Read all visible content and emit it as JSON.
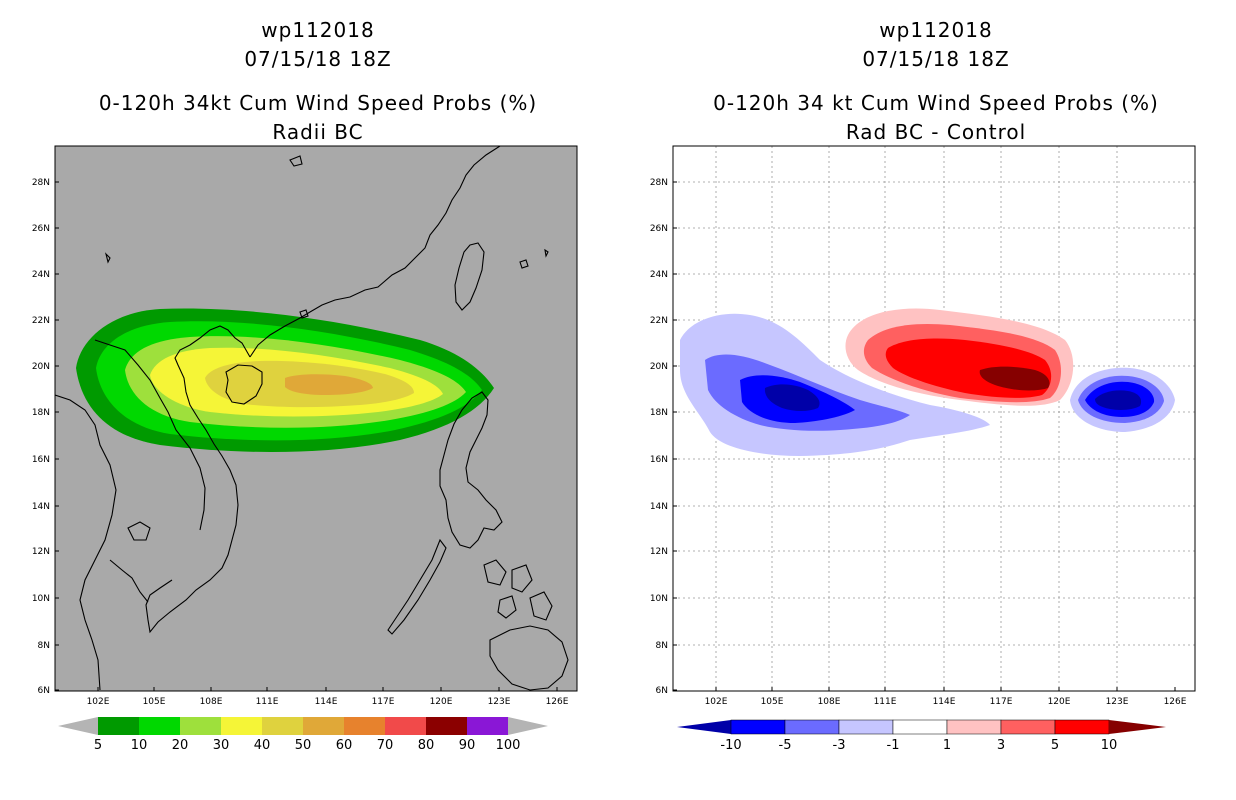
{
  "left_panel": {
    "title_line1": "wp112018",
    "title_line2": "07/15/18 18Z",
    "title_line3": "0-120h 34kt Cum Wind Speed Probs (%)",
    "title_line4": "Radii BC",
    "background_color": "#a9a9a9",
    "colorbar": {
      "labels": [
        "5",
        "10",
        "20",
        "30",
        "40",
        "50",
        "60",
        "70",
        "80",
        "90",
        "100"
      ],
      "colors": [
        "#009a00",
        "#00d800",
        "#9ee03c",
        "#f5f537",
        "#dfd23e",
        "#e0a838",
        "#e7822d",
        "#f14a4a",
        "#8b0000",
        "#8a17d6"
      ]
    }
  },
  "right_panel": {
    "title_line1": "wp112018",
    "title_line2": "07/15/18 18Z",
    "title_line3": "0-120h 34 kt Cum Wind Speed Probs (%)",
    "title_line4": "Rad BC - Control",
    "background_color": "#ffffff",
    "colorbar": {
      "labels": [
        "-10",
        "-5",
        "-3",
        "-1",
        "1",
        "3",
        "5",
        "10"
      ],
      "colors": [
        "#0000a8",
        "#0000ff",
        "#6b6bff",
        "#c6c6ff",
        "#ffffff",
        "#ffc2c2",
        "#ff6060",
        "#ff0000",
        "#860000"
      ]
    }
  },
  "map": {
    "lat_labels": [
      "28N",
      "26N",
      "24N",
      "22N",
      "20N",
      "18N",
      "16N",
      "14N",
      "12N",
      "10N",
      "8N",
      "6N"
    ],
    "lon_labels": [
      "102E",
      "105E",
      "108E",
      "111E",
      "114E",
      "117E",
      "120E",
      "123E",
      "126E"
    ]
  }
}
